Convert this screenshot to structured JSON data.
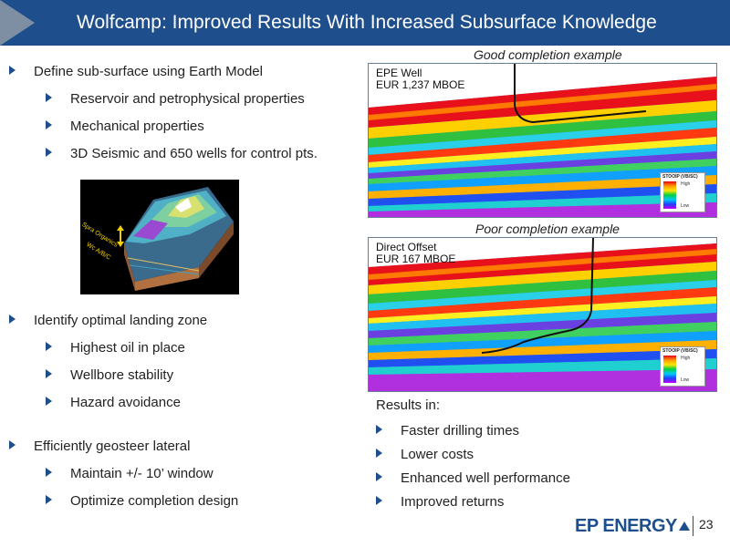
{
  "header": {
    "title": "Wolfcamp: Improved Results With Increased Subsurface Knowledge"
  },
  "left_bullets": [
    {
      "text": "Define sub-surface using Earth Model",
      "sub": [
        "Reservoir and petrophysical properties",
        "Mechanical properties",
        "3D Seismic and 650 wells for control pts."
      ]
    },
    {
      "text": "Identify optimal landing zone",
      "sub": [
        "Highest oil in place",
        "Wellbore stability",
        "Hazard avoidance"
      ]
    },
    {
      "text": "Efficiently geosteer lateral",
      "sub": [
        "Maintain +/- 10’ window",
        "Optimize completion design"
      ]
    }
  ],
  "earth_model": {
    "label_1": "Spra Organics",
    "label_2": "Wc A/B/C"
  },
  "panels": {
    "good": {
      "caption": "Good completion example",
      "line1": "EPE Well",
      "line2": "EUR 1,237 MBOE",
      "legend_title": "STOOIP (VB/SC)",
      "legend_high": "High",
      "legend_low": "Low"
    },
    "poor": {
      "caption": "Poor completion example",
      "line1": "Direct Offset",
      "line2": "EUR 167 MBOE",
      "legend_title": "STOOIP (VB/SC)",
      "legend_high": "High",
      "legend_low": "Low"
    }
  },
  "results": {
    "heading": "Results in:",
    "items": [
      "Faster drilling times",
      "Lower costs",
      "Enhanced well performance",
      "Improved returns"
    ]
  },
  "footer": {
    "logo": "EP ENERGY",
    "page": "23"
  },
  "colors": {
    "header_bg": "#1f4e8c",
    "chevron": "#7f8fa3",
    "bullet": "#1f4e8c"
  }
}
